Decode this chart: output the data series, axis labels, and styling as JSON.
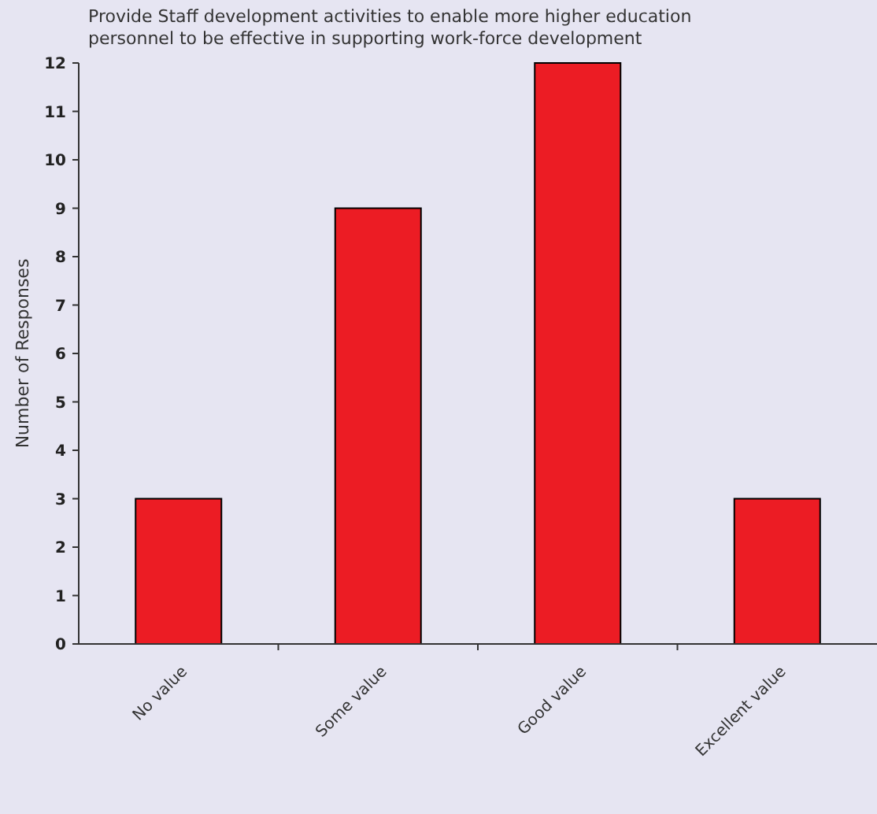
{
  "chart_data": {
    "type": "bar",
    "title": "Provide Staff development activities to enable more higher education\npersonnel to be effective in supporting work-force development",
    "ylabel": "Number of Responses",
    "categories": [
      "No value",
      "Some value",
      "Good value",
      "Excellent value"
    ],
    "values": [
      3,
      9,
      12,
      3
    ],
    "color": "#ec1c24",
    "ylim": [
      0,
      12
    ],
    "yticks": [
      0,
      1,
      2,
      3,
      4,
      5,
      6,
      7,
      8,
      9,
      10,
      11,
      12
    ],
    "grid": false
  }
}
